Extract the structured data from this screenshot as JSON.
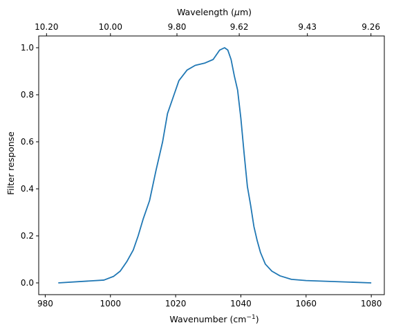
{
  "chart_data": {
    "type": "line",
    "xlabel": "Wavenumber (cm",
    "xlabel_sup": "−1",
    "xlabel_end": ")",
    "ylabel": "Filter response",
    "top_xlabel": "Wavelength (",
    "top_xlabel_mu": "μ",
    "top_xlabel_end": "m)",
    "xlim": [
      978,
      1084
    ],
    "ylim": [
      -0.05,
      1.05
    ],
    "x_ticks": [
      980,
      1000,
      1020,
      1040,
      1060,
      1080
    ],
    "x_tick_labels": [
      "980",
      "1000",
      "1020",
      "1040",
      "1060",
      "1080"
    ],
    "y_ticks": [
      0.0,
      0.2,
      0.4,
      0.6,
      0.8,
      1.0
    ],
    "y_tick_labels": [
      "0.0",
      "0.2",
      "0.4",
      "0.6",
      "0.8",
      "1.0"
    ],
    "top_ticks": [
      980.4,
      1000.0,
      1020.4,
      1039.5,
      1060.4,
      1079.9
    ],
    "top_tick_labels": [
      "10.20",
      "10.00",
      "9.80",
      "9.62",
      "9.43",
      "9.26"
    ],
    "grid": false,
    "colors": {
      "line": "#1f77b4"
    },
    "series": [
      {
        "x": [
          984,
          998,
          1001,
          1003,
          1005,
          1007,
          1008.5,
          1010,
          1012,
          1014,
          1016,
          1017.5,
          1019.5,
          1021,
          1023.5,
          1026,
          1029,
          1031.5,
          1033.5,
          1035,
          1036,
          1037,
          1038,
          1039,
          1040,
          1041,
          1042,
          1043,
          1044,
          1045,
          1046,
          1047.5,
          1049.5,
          1052,
          1055.5,
          1060,
          1080
        ],
        "y": [
          0.0,
          0.012,
          0.028,
          0.05,
          0.09,
          0.14,
          0.2,
          0.27,
          0.35,
          0.48,
          0.6,
          0.72,
          0.8,
          0.86,
          0.905,
          0.925,
          0.935,
          0.95,
          0.99,
          1.0,
          0.99,
          0.95,
          0.88,
          0.82,
          0.7,
          0.55,
          0.41,
          0.33,
          0.24,
          0.18,
          0.13,
          0.08,
          0.05,
          0.03,
          0.015,
          0.01,
          0.0
        ]
      }
    ]
  }
}
